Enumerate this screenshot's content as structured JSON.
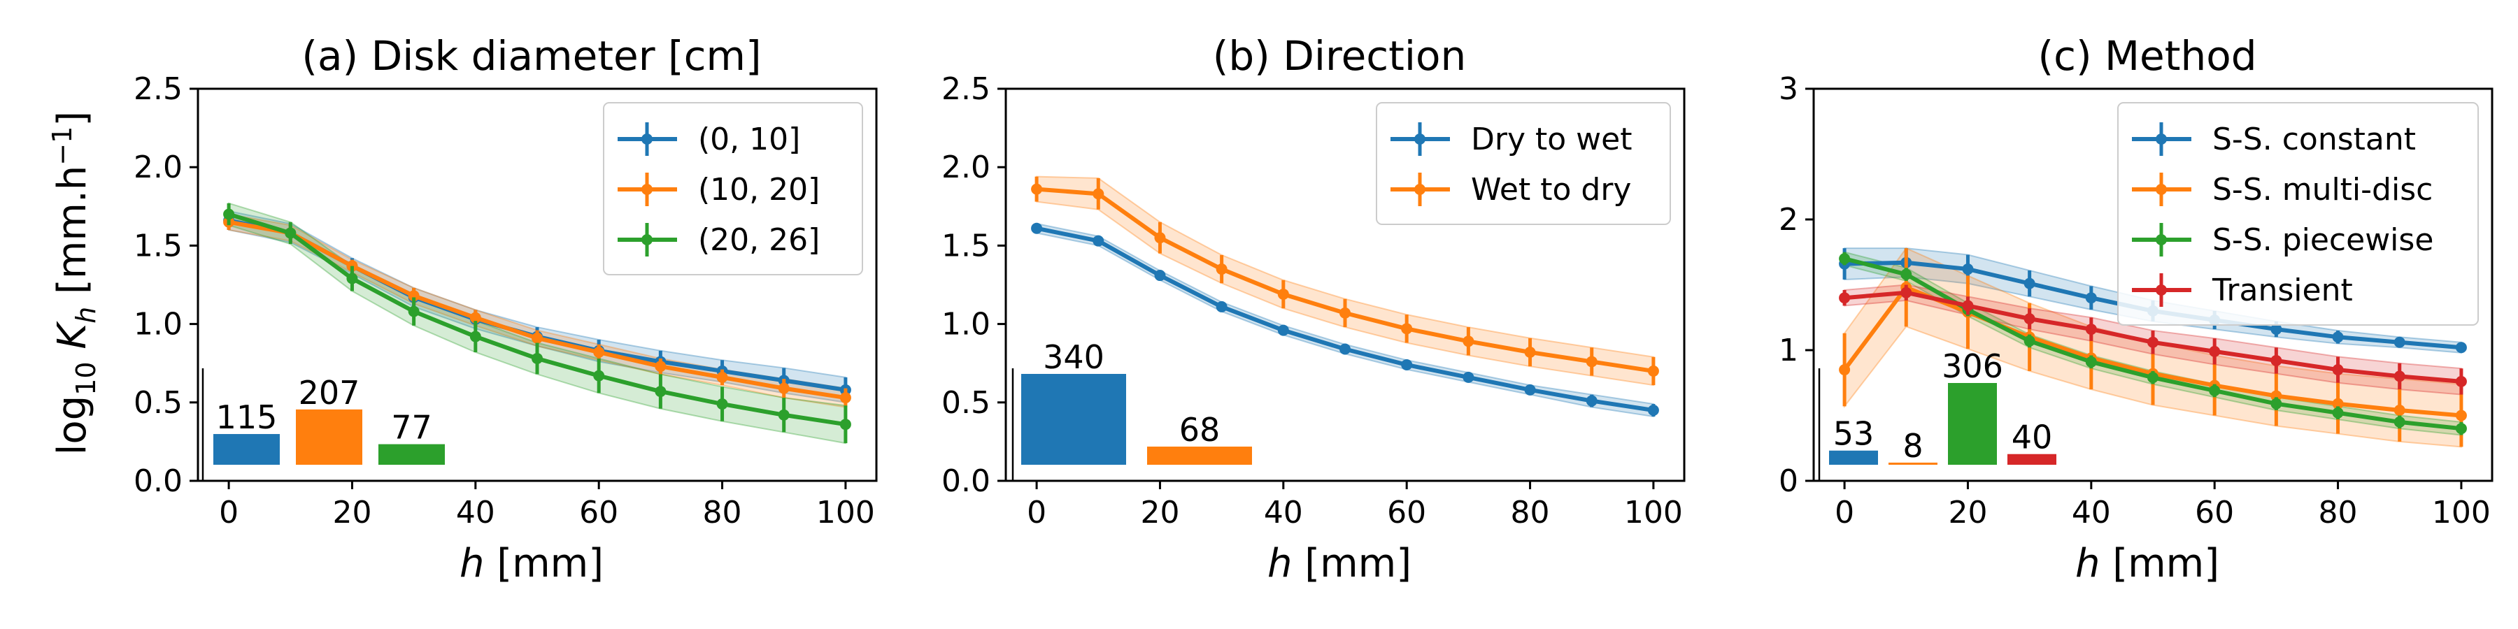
{
  "colors": {
    "blue": "#1f77b4",
    "orange": "#ff7f0e",
    "green": "#2ca02c",
    "red": "#d62728"
  },
  "chart_data": [
    {
      "type": "line",
      "title": "(a) Disk diameter [cm]",
      "xlabel_var": "h",
      "xlabel_unit": " [mm]",
      "ylabel_pre": "log",
      "ylabel_sub": "10",
      "ylabel_var": " K",
      "ylabel_varsub": "h",
      "ylabel_unit": " [mm.h",
      "ylabel_exp": "−1",
      "ylabel_close": "]",
      "xlim": [
        -5,
        105
      ],
      "ylim": [
        0,
        2.5
      ],
      "xticks": [
        0,
        20,
        40,
        60,
        80,
        100
      ],
      "yticks": [
        0.0,
        0.5,
        1.0,
        1.5,
        2.0,
        2.5
      ],
      "ytick_labels": [
        "0.0",
        "0.5",
        "1.0",
        "1.5",
        "2.0",
        "2.5"
      ],
      "legend_position": "top-right",
      "x": [
        0,
        10,
        20,
        30,
        40,
        50,
        60,
        70,
        80,
        90,
        100
      ],
      "series": [
        {
          "name": "(0, 10]",
          "color": "blue",
          "values": [
            1.66,
            1.58,
            1.37,
            1.17,
            1.03,
            0.92,
            0.83,
            0.76,
            0.7,
            0.64,
            0.58
          ],
          "err": [
            0.06,
            0.06,
            0.05,
            0.06,
            0.06,
            0.06,
            0.07,
            0.07,
            0.07,
            0.08,
            0.08
          ]
        },
        {
          "name": "(10, 20]",
          "color": "orange",
          "values": [
            1.65,
            1.58,
            1.37,
            1.18,
            1.04,
            0.91,
            0.82,
            0.73,
            0.66,
            0.59,
            0.53
          ],
          "err": [
            0.05,
            0.05,
            0.04,
            0.05,
            0.05,
            0.05,
            0.05,
            0.05,
            0.05,
            0.06,
            0.06
          ]
        },
        {
          "name": "(20, 26]",
          "color": "green",
          "values": [
            1.7,
            1.58,
            1.29,
            1.08,
            0.92,
            0.78,
            0.67,
            0.57,
            0.49,
            0.42,
            0.36
          ],
          "err": [
            0.07,
            0.07,
            0.08,
            0.09,
            0.1,
            0.1,
            0.11,
            0.11,
            0.11,
            0.11,
            0.12
          ]
        }
      ],
      "inset": {
        "values": [
          115,
          207,
          77
        ],
        "colors": [
          "blue",
          "orange",
          "green"
        ],
        "labels": [
          "115",
          "207",
          "77"
        ]
      }
    },
    {
      "type": "line",
      "title": "(b) Direction",
      "xlabel_var": "h",
      "xlabel_unit": " [mm]",
      "xlim": [
        -5,
        105
      ],
      "ylim": [
        0,
        2.5
      ],
      "xticks": [
        0,
        20,
        40,
        60,
        80,
        100
      ],
      "yticks": [
        0.0,
        0.5,
        1.0,
        1.5,
        2.0,
        2.5
      ],
      "ytick_labels": [
        "0.0",
        "0.5",
        "1.0",
        "1.5",
        "2.0",
        "2.5"
      ],
      "legend_position": "top-right",
      "x": [
        0,
        10,
        20,
        30,
        40,
        50,
        60,
        70,
        80,
        90,
        100
      ],
      "series": [
        {
          "name": "Dry to wet",
          "color": "blue",
          "values": [
            1.61,
            1.53,
            1.31,
            1.11,
            0.96,
            0.84,
            0.74,
            0.66,
            0.58,
            0.51,
            0.45
          ],
          "err": [
            0.03,
            0.03,
            0.03,
            0.03,
            0.03,
            0.03,
            0.03,
            0.03,
            0.03,
            0.04,
            0.04
          ]
        },
        {
          "name": "Wet to dry",
          "color": "orange",
          "values": [
            1.86,
            1.83,
            1.55,
            1.35,
            1.19,
            1.07,
            0.97,
            0.89,
            0.82,
            0.76,
            0.7
          ],
          "err": [
            0.08,
            0.1,
            0.1,
            0.09,
            0.09,
            0.09,
            0.09,
            0.09,
            0.09,
            0.09,
            0.09
          ]
        }
      ],
      "inset": {
        "values": [
          340,
          68
        ],
        "colors": [
          "blue",
          "orange"
        ],
        "labels": [
          "340",
          "68"
        ]
      }
    },
    {
      "type": "line",
      "title": "(c) Method",
      "xlabel_var": "h",
      "xlabel_unit": " [mm]",
      "xlim": [
        -5,
        105
      ],
      "ylim": [
        0,
        3
      ],
      "xticks": [
        0,
        20,
        40,
        60,
        80,
        100
      ],
      "yticks": [
        0,
        1,
        2,
        3
      ],
      "ytick_labels": [
        "0",
        "1",
        "2",
        "3"
      ],
      "legend_position": "top-right",
      "x": [
        0,
        10,
        20,
        30,
        40,
        50,
        60,
        70,
        80,
        90,
        100
      ],
      "series": [
        {
          "name": "S-S. constant",
          "color": "blue",
          "values": [
            1.66,
            1.67,
            1.62,
            1.51,
            1.4,
            1.3,
            1.23,
            1.16,
            1.1,
            1.06,
            1.02
          ],
          "err": [
            0.12,
            0.11,
            0.11,
            0.1,
            0.09,
            0.08,
            0.07,
            0.06,
            0.05,
            0.04,
            0.04
          ]
        },
        {
          "name": "S-S. multi-disc",
          "color": "orange",
          "values": [
            0.85,
            1.48,
            1.29,
            1.1,
            0.94,
            0.82,
            0.73,
            0.65,
            0.59,
            0.54,
            0.5
          ],
          "err": [
            0.28,
            0.3,
            0.28,
            0.26,
            0.24,
            0.24,
            0.23,
            0.23,
            0.23,
            0.24,
            0.24
          ]
        },
        {
          "name": "S-S. piecewise",
          "color": "green",
          "values": [
            1.7,
            1.58,
            1.31,
            1.07,
            0.91,
            0.79,
            0.69,
            0.59,
            0.52,
            0.45,
            0.4
          ],
          "err": [
            0.05,
            0.05,
            0.05,
            0.05,
            0.05,
            0.05,
            0.05,
            0.05,
            0.05,
            0.05,
            0.05
          ]
        },
        {
          "name": "Transient",
          "color": "red",
          "values": [
            1.4,
            1.44,
            1.34,
            1.24,
            1.16,
            1.06,
            0.99,
            0.92,
            0.85,
            0.8,
            0.76
          ],
          "err": [
            0.06,
            0.06,
            0.07,
            0.08,
            0.09,
            0.09,
            0.1,
            0.1,
            0.1,
            0.1,
            0.1
          ]
        }
      ],
      "inset": {
        "values": [
          53,
          8,
          306,
          40
        ],
        "colors": [
          "blue",
          "orange",
          "green",
          "red"
        ],
        "labels": [
          "53",
          "8",
          "306",
          "40"
        ]
      }
    }
  ]
}
